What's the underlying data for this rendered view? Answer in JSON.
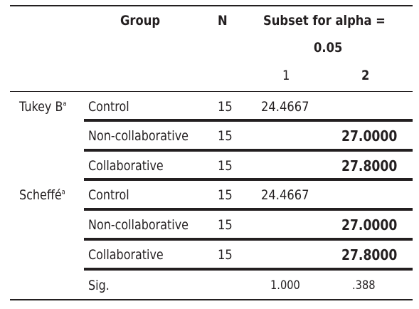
{
  "table": {
    "header": {
      "group": "Group",
      "n": "N",
      "subset_line1": "Subset for alpha =",
      "subset_line2": "0.05",
      "subset_col1": "1",
      "subset_col2": "2"
    },
    "tests": [
      {
        "name": "Tukey B",
        "sup": "a",
        "rows": [
          {
            "group": "Control",
            "n": "15",
            "s1": "24.4667",
            "s2": ""
          },
          {
            "group": "Non-collaborative",
            "n": "15",
            "s1": "",
            "s2": "27.0000"
          },
          {
            "group": "Collaborative",
            "n": "15",
            "s1": "",
            "s2": "27.8000"
          }
        ]
      },
      {
        "name": "Scheffé",
        "sup": "a",
        "rows": [
          {
            "group": "Control",
            "n": "15",
            "s1": "24.4667",
            "s2": ""
          },
          {
            "group": "Non-collaborative",
            "n": "15",
            "s1": "",
            "s2": "27.0000"
          },
          {
            "group": "Collaborative",
            "n": "15",
            "s1": "",
            "s2": "27.8000"
          }
        ]
      }
    ],
    "sig": {
      "label": "Sig.",
      "s1": "1.000",
      "s2": ".388"
    }
  }
}
